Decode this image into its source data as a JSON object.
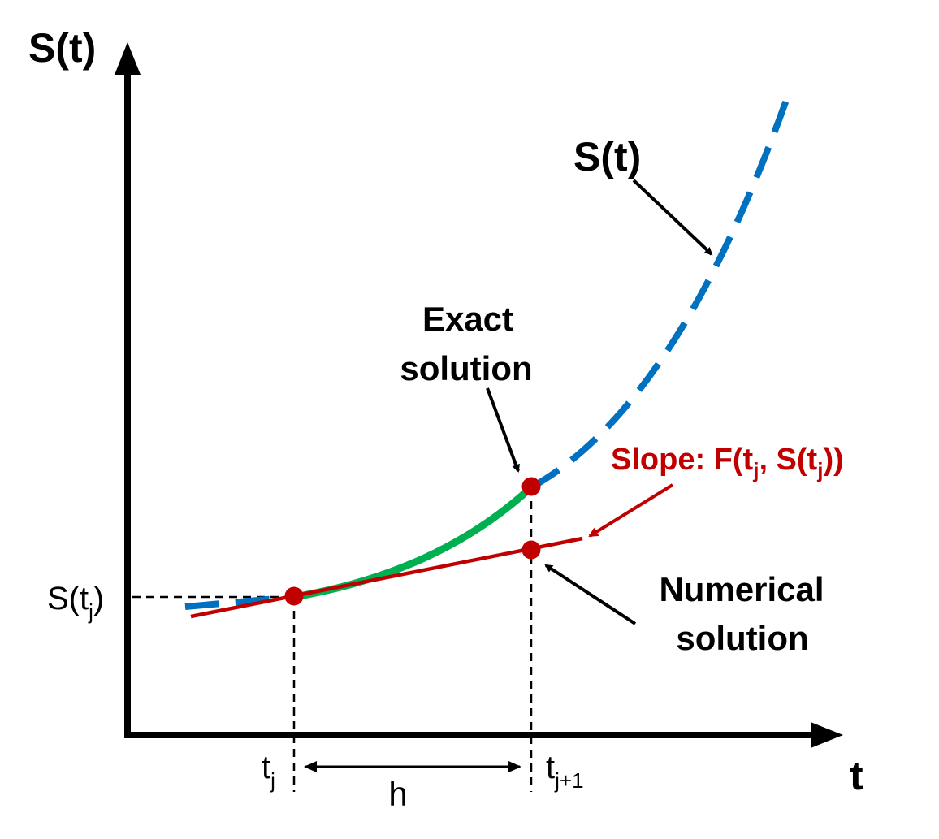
{
  "colors": {
    "axis": "#000000",
    "exact_curve": "#0070c0",
    "exact_segment": "#00b050",
    "tangent": "#c00000",
    "points": "#c00000",
    "annotation_arrows": "#000000",
    "slope_label": "#c00000"
  },
  "labels": {
    "y_axis": "S(t)",
    "x_axis": "t",
    "curve_name": "S(t)",
    "exact_line1": "Exact",
    "exact_line2": "solution",
    "numerical_line1": "Numerical",
    "numerical_line2": "solution",
    "slope_prefix": "Slope: F(t",
    "slope_sub1": "j",
    "slope_mid": ", S(t",
    "slope_sub2": "j",
    "slope_suffix": "))",
    "s_tj_prefix": "S(t",
    "s_tj_sub": "j",
    "s_tj_suffix": ")",
    "tj_main": "t",
    "tj_sub": "j",
    "tj1_main": "t",
    "tj1_sub": "j+1",
    "step": "h"
  }
}
